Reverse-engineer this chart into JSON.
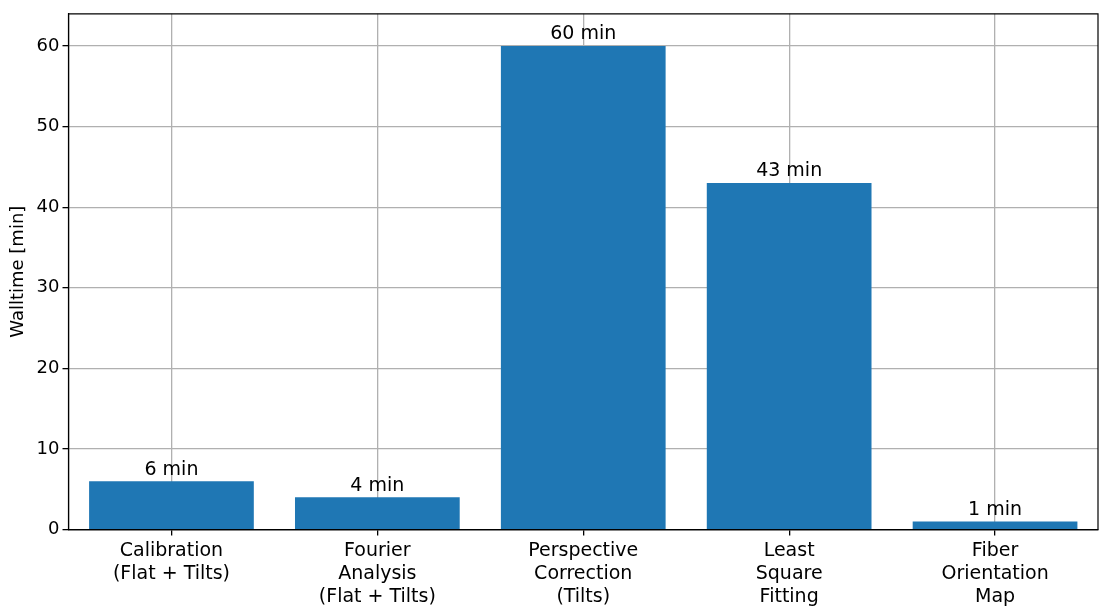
{
  "chart_data": {
    "type": "bar",
    "ylabel": "Walltime [min]",
    "categories": [
      "Calibration\n(Flat + Tilts)",
      "Fourier\nAnalysis\n(Flat + Tilts)",
      "Perspective\nCorrection\n(Tilts)",
      "Least\nSquare\nFitting",
      "Fiber\nOrientation\nMap"
    ],
    "values": [
      6,
      4,
      60,
      43,
      1
    ],
    "value_labels": [
      "6 min",
      "4 min",
      "60 min",
      "43 min",
      "1 min"
    ],
    "color": "#1f77b4",
    "ylim": [
      0,
      64
    ],
    "yticks": [
      0,
      10,
      20,
      30,
      40,
      50,
      60
    ],
    "grid": true
  }
}
